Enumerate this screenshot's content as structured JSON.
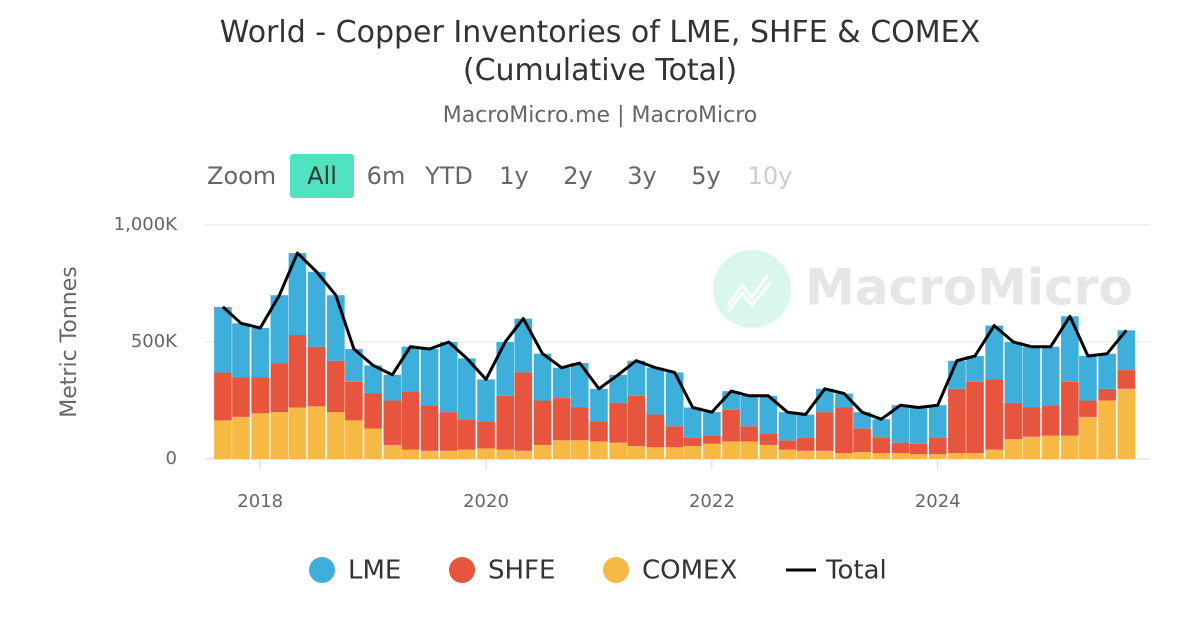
{
  "chart_data": {
    "type": "stacked-area-line",
    "title": "World - Copper Inventories of LME, SHFE & COMEX (Cumulative Total)",
    "subtitle": "MacroMicro.me | MacroMicro",
    "watermark": "MacroMicro",
    "range_selector": {
      "label": "Zoom",
      "buttons": [
        "All",
        "6m",
        "YTD",
        "1y",
        "2y",
        "3y",
        "5y",
        "10y"
      ],
      "selected": 0,
      "disabled": [
        7
      ]
    },
    "y_label": "Metric Tonnes",
    "xlim": [
      2017.6,
      2025.8
    ],
    "xticks": [
      2018,
      2020,
      2022,
      2024
    ],
    "ylim": [
      0,
      1000000
    ],
    "yticks": [
      {
        "value": 0,
        "label": "0"
      },
      {
        "value": 500000,
        "label": "500K"
      },
      {
        "value": 1000000,
        "label": "1,000K"
      }
    ],
    "grid": true,
    "legend": "bottom",
    "x": [
      2017.67,
      2017.83,
      2018,
      2018.17,
      2018.33,
      2018.5,
      2018.67,
      2018.83,
      2019,
      2019.17,
      2019.33,
      2019.5,
      2019.67,
      2019.83,
      2020,
      2020.17,
      2020.33,
      2020.5,
      2020.67,
      2020.83,
      2021,
      2021.17,
      2021.33,
      2021.5,
      2021.67,
      2021.83,
      2022,
      2022.17,
      2022.33,
      2022.5,
      2022.67,
      2022.83,
      2023,
      2023.17,
      2023.33,
      2023.5,
      2023.67,
      2023.83,
      2024,
      2024.17,
      2024.33,
      2024.5,
      2024.67,
      2024.83,
      2025,
      2025.17,
      2025.33,
      2025.5,
      2025.67
    ],
    "series": [
      {
        "name": "LME",
        "color": "#3eafdb",
        "values": [
          280000,
          230000,
          210000,
          290000,
          350000,
          320000,
          280000,
          140000,
          120000,
          110000,
          190000,
          240000,
          300000,
          260000,
          180000,
          230000,
          230000,
          200000,
          130000,
          190000,
          140000,
          120000,
          150000,
          200000,
          230000,
          130000,
          100000,
          80000,
          130000,
          160000,
          120000,
          100000,
          100000,
          60000,
          70000,
          80000,
          160000,
          155000,
          140000,
          120000,
          110000,
          230000,
          260000,
          260000,
          250000,
          280000,
          190000,
          150000,
          170000
        ]
      },
      {
        "name": "SHFE",
        "color": "#e8553e",
        "values": [
          205000,
          170000,
          155000,
          210000,
          310000,
          255000,
          220000,
          165000,
          150000,
          190000,
          250000,
          195000,
          165000,
          130000,
          115000,
          230000,
          335000,
          190000,
          180000,
          140000,
          85000,
          170000,
          215000,
          140000,
          90000,
          35000,
          35000,
          135000,
          65000,
          50000,
          40000,
          55000,
          165000,
          195000,
          100000,
          65000,
          45000,
          45000,
          70000,
          275000,
          305000,
          300000,
          155000,
          125000,
          130000,
          230000,
          70000,
          50000,
          80000
        ]
      },
      {
        "name": "COMEX",
        "color": "#f5b944",
        "values": [
          165000,
          180000,
          195000,
          200000,
          220000,
          225000,
          200000,
          165000,
          130000,
          60000,
          40000,
          35000,
          35000,
          40000,
          45000,
          40000,
          35000,
          60000,
          80000,
          80000,
          75000,
          70000,
          55000,
          50000,
          50000,
          55000,
          65000,
          75000,
          75000,
          60000,
          40000,
          35000,
          35000,
          25000,
          30000,
          25000,
          25000,
          20000,
          20000,
          25000,
          25000,
          40000,
          85000,
          95000,
          100000,
          100000,
          180000,
          250000,
          300000
        ]
      },
      {
        "name": "Total",
        "color": "#000000",
        "line": true,
        "values": [
          650000,
          580000,
          560000,
          700000,
          880000,
          800000,
          700000,
          470000,
          400000,
          360000,
          480000,
          470000,
          500000,
          430000,
          340000,
          500000,
          600000,
          450000,
          390000,
          410000,
          300000,
          360000,
          420000,
          390000,
          370000,
          220000,
          200000,
          290000,
          270000,
          270000,
          200000,
          190000,
          300000,
          280000,
          200000,
          170000,
          230000,
          220000,
          230000,
          420000,
          440000,
          570000,
          500000,
          480000,
          480000,
          610000,
          440000,
          450000,
          550000
        ]
      }
    ]
  }
}
